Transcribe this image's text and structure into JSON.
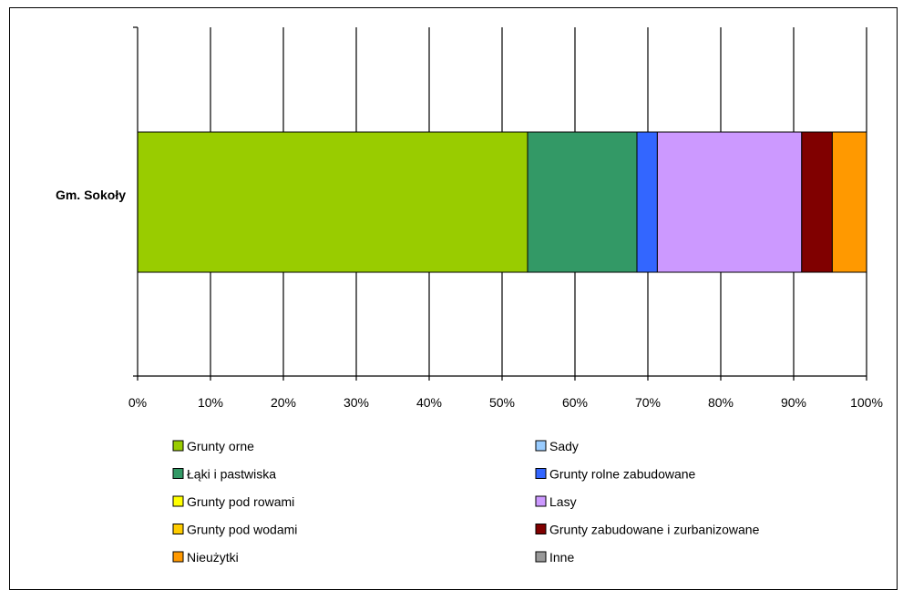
{
  "chart_data": {
    "type": "bar",
    "orientation": "horizontal",
    "stacked": "100%",
    "categories": [
      "Gm. Sokoły"
    ],
    "xlim": [
      0,
      100
    ],
    "x_ticks": [
      "0%",
      "10%",
      "20%",
      "30%",
      "40%",
      "50%",
      "60%",
      "70%",
      "80%",
      "90%",
      "100%"
    ],
    "grid": true,
    "legend_position": "bottom",
    "series": [
      {
        "name": "Grunty orne",
        "values": [
          53.5
        ],
        "color": "#99cc00"
      },
      {
        "name": "Sady",
        "values": [
          0
        ],
        "color": "#99ccff"
      },
      {
        "name": "Łąki i pastwiska",
        "values": [
          15.0
        ],
        "color": "#339966"
      },
      {
        "name": "Grunty rolne zabudowane",
        "values": [
          2.8
        ],
        "color": "#3366ff"
      },
      {
        "name": "Grunty pod rowami",
        "values": [
          0
        ],
        "color": "#ffff00"
      },
      {
        "name": "Lasy",
        "values": [
          19.8
        ],
        "color": "#cc99ff"
      },
      {
        "name": "Grunty pod wodami",
        "values": [
          0
        ],
        "color": "#ffcc00"
      },
      {
        "name": "Grunty zabudowane i zurbanizowane",
        "values": [
          4.2
        ],
        "color": "#800000"
      },
      {
        "name": "Nieużytki",
        "values": [
          4.7
        ],
        "color": "#ff9900"
      },
      {
        "name": "Inne",
        "values": [
          0
        ],
        "color": "#999999"
      }
    ]
  }
}
